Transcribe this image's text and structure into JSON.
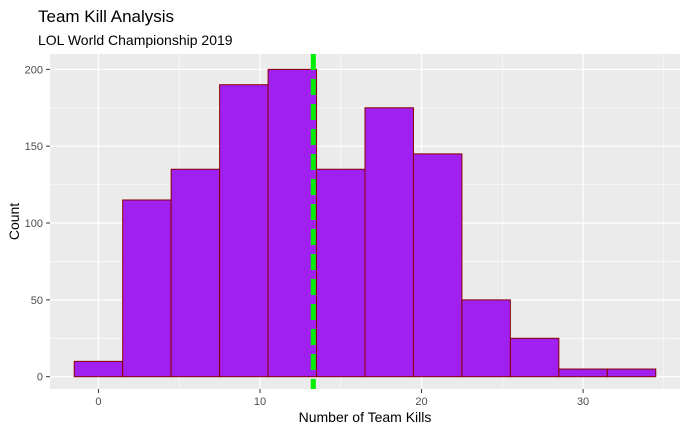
{
  "chart_data": {
    "type": "bar",
    "title": "Team Kill Analysis",
    "subtitle": "LOL World Championship 2019",
    "xlabel": "Number of Team Kills",
    "ylabel": "Count",
    "xlim": [
      -3,
      36
    ],
    "ylim": [
      -8,
      210
    ],
    "xticks": [
      0,
      10,
      20,
      30
    ],
    "yticks": [
      0,
      50,
      100,
      150,
      200
    ],
    "bin_width": 3,
    "bins": [
      {
        "start": -1.5,
        "end": 1.5,
        "count": 10
      },
      {
        "start": 1.5,
        "end": 4.5,
        "count": 115
      },
      {
        "start": 4.5,
        "end": 7.5,
        "count": 135
      },
      {
        "start": 7.5,
        "end": 10.5,
        "count": 190
      },
      {
        "start": 10.5,
        "end": 13.5,
        "count": 200
      },
      {
        "start": 13.5,
        "end": 16.5,
        "count": 135
      },
      {
        "start": 16.5,
        "end": 19.5,
        "count": 175
      },
      {
        "start": 19.5,
        "end": 22.5,
        "count": 145
      },
      {
        "start": 22.5,
        "end": 25.5,
        "count": 50
      },
      {
        "start": 25.5,
        "end": 28.5,
        "count": 25
      },
      {
        "start": 28.5,
        "end": 31.5,
        "count": 5
      },
      {
        "start": 31.5,
        "end": 34.5,
        "count": 5
      }
    ],
    "vline": {
      "x": 13.3,
      "style": "dashed"
    },
    "grid": true,
    "colors": {
      "bar_fill": "#a020f0",
      "bar_stroke": "#8b0000",
      "vline": "#00ee00",
      "panel": "#ebebeb",
      "grid_major": "#ffffff",
      "tick_text": "#4d4d4d"
    }
  }
}
